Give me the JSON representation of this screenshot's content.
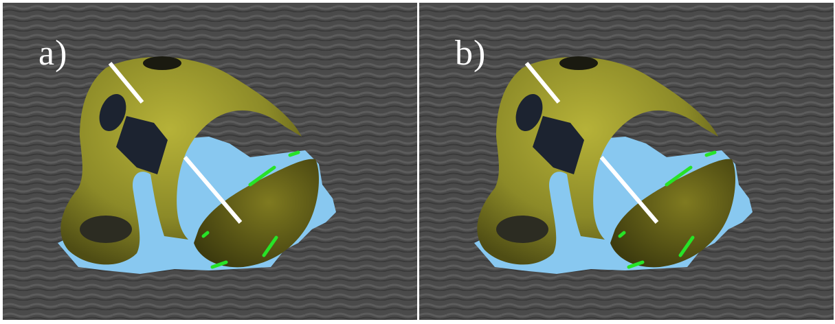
{
  "panels": [
    {
      "label": "a)"
    },
    {
      "label": "b)"
    }
  ],
  "colors": {
    "background_gray": "#4a4a4a",
    "object_yellow": "#8c8a28",
    "object_dark": "#1c2330",
    "hole_blue": "#88c8f0",
    "edge_green": "#27e327",
    "marker_white": "#ffffff"
  }
}
